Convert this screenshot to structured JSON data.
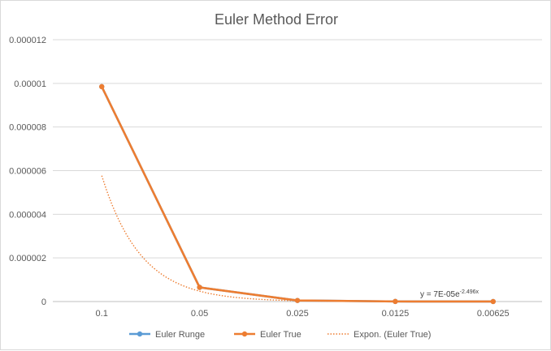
{
  "chart_data": {
    "type": "line",
    "title": "Euler Method Error",
    "categories": [
      "0.1",
      "0.05",
      "0.025",
      "0.0125",
      "0.00625"
    ],
    "ylim": [
      0,
      1.2e-05
    ],
    "yticks": [
      0,
      2e-06,
      4e-06,
      6e-06,
      8e-06,
      1e-05,
      1.2e-05
    ],
    "ytick_labels": [
      "0",
      "0.000002",
      "0.000004",
      "0.000006",
      "0.000008",
      "0.00001",
      "0.000012"
    ],
    "grid": true,
    "legend_position": "bottom",
    "series": [
      {
        "name": "Euler Runge",
        "color": "#5b9bd5",
        "values": [
          9.85e-06,
          6.5e-07,
          5e-08,
          5e-09,
          1e-09
        ]
      },
      {
        "name": "Euler True",
        "color": "#ed7d31",
        "values": [
          9.85e-06,
          6.5e-07,
          5e-08,
          5e-09,
          1e-09
        ]
      }
    ],
    "trendline": {
      "name": "Expon. (Euler True)",
      "color": "#ed7d31",
      "style": "dotted",
      "coefficient": 7e-05,
      "exponent": -2.496,
      "equation_main": "y = 7E-05e",
      "equation_sup": "-2.496x"
    }
  }
}
